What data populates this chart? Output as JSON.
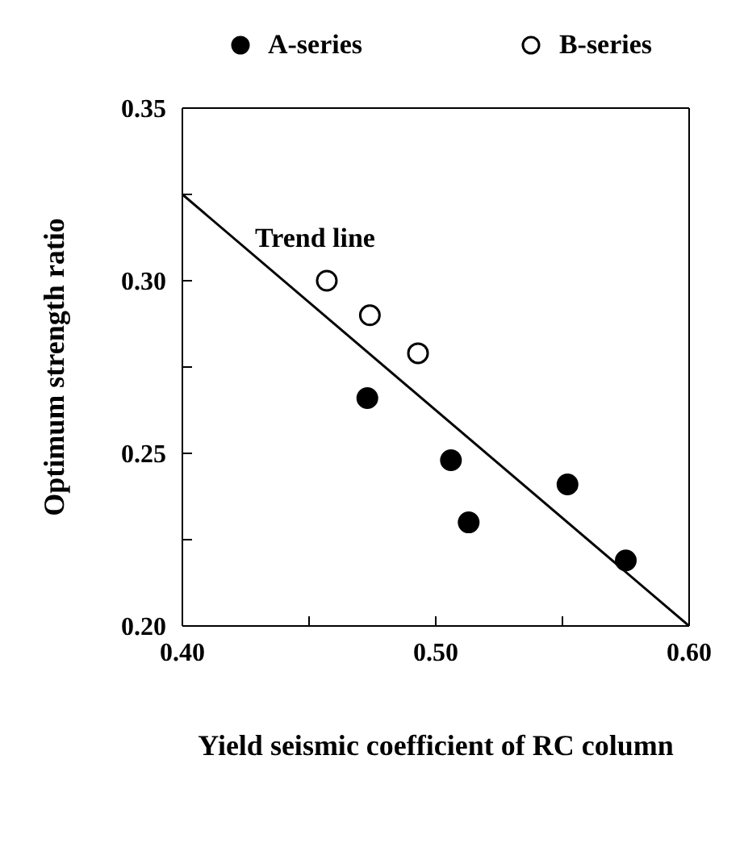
{
  "chart_data": {
    "type": "scatter",
    "xlabel": "Yield seismic coefficient of RC column",
    "ylabel": "Optimum strength ratio",
    "xlim": [
      0.4,
      0.6
    ],
    "ylim": [
      0.2,
      0.35
    ],
    "xticks": [
      {
        "value": 0.4,
        "label": "0.40"
      },
      {
        "value": 0.45,
        "label": null
      },
      {
        "value": 0.5,
        "label": "0.50"
      },
      {
        "value": 0.55,
        "label": null
      },
      {
        "value": 0.6,
        "label": "0.60"
      }
    ],
    "yticks": [
      {
        "value": 0.2,
        "label": "0.20"
      },
      {
        "value": 0.225,
        "label": null
      },
      {
        "value": 0.25,
        "label": "0.25"
      },
      {
        "value": 0.275,
        "label": null
      },
      {
        "value": 0.3,
        "label": "0.30"
      },
      {
        "value": 0.325,
        "label": null
      },
      {
        "value": 0.35,
        "label": "0.35"
      }
    ],
    "legend": "top",
    "grid": false,
    "annotations": [
      "Trend line"
    ],
    "series": [
      {
        "name": "A-series",
        "marker": "circle",
        "color": "#000000",
        "x": [
          0.473,
          0.506,
          0.513,
          0.552,
          0.575
        ],
        "values": [
          0.266,
          0.248,
          0.23,
          0.241,
          0.219
        ]
      },
      {
        "name": "B-series",
        "marker": "circle",
        "color": "#ffffff",
        "x": [
          0.457,
          0.474,
          0.493
        ],
        "values": [
          0.3,
          0.29,
          0.279
        ]
      },
      {
        "type": "line",
        "color": "#000000",
        "line_style": "solid",
        "x": [
          0.4,
          0.6
        ],
        "values": [
          0.325,
          0.2
        ]
      }
    ]
  }
}
